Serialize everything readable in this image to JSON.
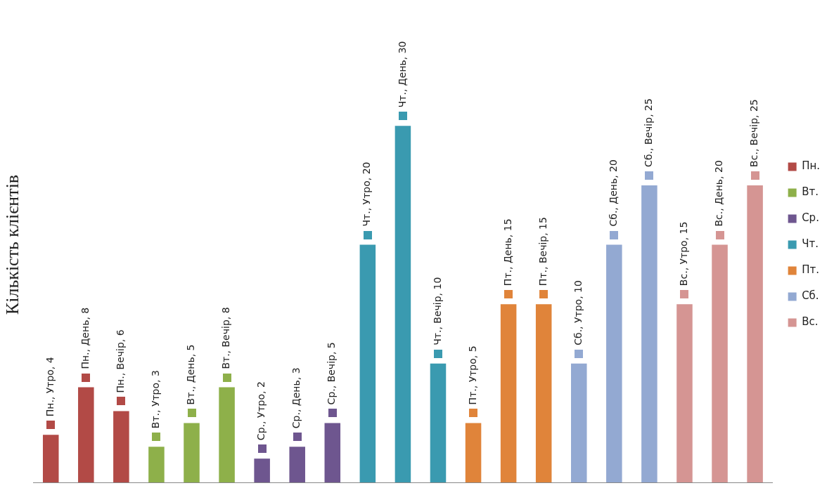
{
  "chart_data": {
    "type": "bar",
    "ylabel": "Кількість клієнтів",
    "legend": "right",
    "stacked": true,
    "grid": false,
    "tick_labels": false,
    "categories": [
      null,
      null,
      null,
      null,
      null,
      null,
      null,
      null,
      null,
      null,
      null,
      null,
      null,
      null,
      null,
      null,
      null,
      null,
      null,
      null,
      null
    ],
    "series": [
      {
        "name": "Пн.",
        "color": "#b24a46",
        "values": [
          4,
          8,
          6,
          null,
          null,
          null,
          null,
          null,
          null,
          null,
          null,
          null,
          null,
          null,
          null,
          null,
          null,
          null,
          null,
          null,
          null
        ],
        "value_labels": [
          "Пн., Утро, 4",
          "Пн., День, 8",
          "Пн., Вечір, 6",
          null,
          null,
          null,
          null,
          null,
          null,
          null,
          null,
          null,
          null,
          null,
          null,
          null,
          null,
          null,
          null,
          null,
          null
        ]
      },
      {
        "name": "Вт.",
        "color": "#8eb04a",
        "values": [
          null,
          null,
          null,
          3,
          5,
          8,
          null,
          null,
          null,
          null,
          null,
          null,
          null,
          null,
          null,
          null,
          null,
          null,
          null,
          null,
          null
        ],
        "value_labels": [
          null,
          null,
          null,
          "Вт., Утро, 3",
          "Вт., День, 5",
          "Вт., Вечір, 8",
          null,
          null,
          null,
          null,
          null,
          null,
          null,
          null,
          null,
          null,
          null,
          null,
          null,
          null,
          null
        ]
      },
      {
        "name": "Ср.",
        "color": "#6e568f",
        "values": [
          null,
          null,
          null,
          null,
          null,
          null,
          2,
          3,
          5,
          null,
          null,
          null,
          null,
          null,
          null,
          null,
          null,
          null,
          null,
          null,
          null
        ],
        "value_labels": [
          null,
          null,
          null,
          null,
          null,
          null,
          "Ср., Утро, 2",
          "Ср., День, 3",
          "Ср., Вечір, 5",
          null,
          null,
          null,
          null,
          null,
          null,
          null,
          null,
          null,
          null,
          null,
          null
        ]
      },
      {
        "name": "Чт.",
        "color": "#3a9ab0",
        "values": [
          null,
          null,
          null,
          null,
          null,
          null,
          null,
          null,
          null,
          20,
          30,
          10,
          null,
          null,
          null,
          null,
          null,
          null,
          null,
          null,
          null
        ],
        "value_labels": [
          null,
          null,
          null,
          null,
          null,
          null,
          null,
          null,
          null,
          "Чт., Утро, 20",
          "Чт., День, 30",
          "Чт., Вечір, 10",
          null,
          null,
          null,
          null,
          null,
          null,
          null,
          null,
          null
        ]
      },
      {
        "name": "Пт.",
        "color": "#e0843a",
        "values": [
          null,
          null,
          null,
          null,
          null,
          null,
          null,
          null,
          null,
          null,
          null,
          null,
          5,
          15,
          15,
          null,
          null,
          null,
          null,
          null,
          null
        ],
        "value_labels": [
          null,
          null,
          null,
          null,
          null,
          null,
          null,
          null,
          null,
          null,
          null,
          null,
          "Пт., Утро, 5",
          "Пт., День, 15",
          "Пт., Вечір, 15",
          null,
          null,
          null,
          null,
          null,
          null
        ]
      },
      {
        "name": "Сб.",
        "color": "#93a9d2",
        "values": [
          null,
          null,
          null,
          null,
          null,
          null,
          null,
          null,
          null,
          null,
          null,
          null,
          null,
          null,
          null,
          10,
          20,
          25,
          null,
          null,
          null
        ],
        "value_labels": [
          null,
          null,
          null,
          null,
          null,
          null,
          null,
          null,
          null,
          null,
          null,
          null,
          null,
          null,
          null,
          "Сб., Утро, 10",
          "Сб., День, 20",
          "Сб., Вечір, 25",
          null,
          null,
          null
        ]
      },
      {
        "name": "Вс.",
        "color": "#d59593",
        "values": [
          null,
          null,
          null,
          null,
          null,
          null,
          null,
          null,
          null,
          null,
          null,
          null,
          null,
          null,
          null,
          null,
          null,
          null,
          15,
          20,
          25
        ],
        "value_labels": [
          null,
          null,
          null,
          null,
          null,
          null,
          null,
          null,
          null,
          null,
          null,
          null,
          null,
          null,
          null,
          null,
          null,
          null,
          "Вс., Утро, 15",
          "Вс., День, 20",
          "Вс., Вечір, 25"
        ]
      }
    ]
  }
}
